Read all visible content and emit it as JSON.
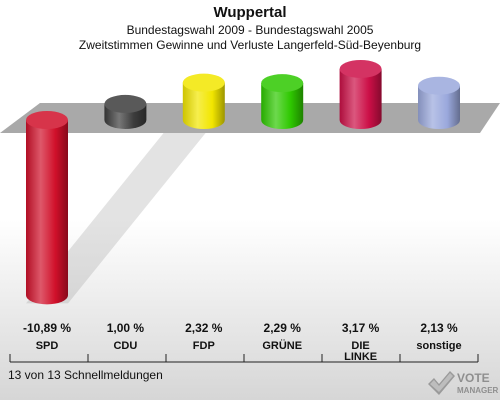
{
  "header": {
    "title": "Wuppertal",
    "subtitle": "Bundestagswahl 2009 - Bundestagswahl 2005",
    "subtitle2": "Zweitstimmen Gewinne und Verluste Langerfeld-Süd-Beyenburg"
  },
  "footer": {
    "status": "13 von 13 Schnellmeldungen"
  },
  "logo": {
    "line1": "VOTE",
    "line2": "MANAGER"
  },
  "chart_data": {
    "type": "bar",
    "title": "Wuppertal",
    "categories": [
      "SPD",
      "CDU",
      "FDP",
      "GRÜNE",
      "DIE LINKE",
      "sonstige"
    ],
    "category_lines": [
      [
        "SPD"
      ],
      [
        "CDU"
      ],
      [
        "FDP"
      ],
      [
        "GRÜNE"
      ],
      [
        "DIE",
        "LINKE"
      ],
      [
        "sonstige"
      ]
    ],
    "values": [
      -10.89,
      1.0,
      2.32,
      2.29,
      3.17,
      2.13
    ],
    "value_labels": [
      "-10,89 %",
      "1,00 %",
      "2,32 %",
      "2,29 %",
      "3,17 %",
      "2,13 %"
    ],
    "colors": [
      "#d0102a",
      "#3c3c3c",
      "#f2e600",
      "#2ec800",
      "#cc0f47",
      "#9aa8dc"
    ],
    "xlabel": "",
    "ylabel": "",
    "grid": false
  }
}
